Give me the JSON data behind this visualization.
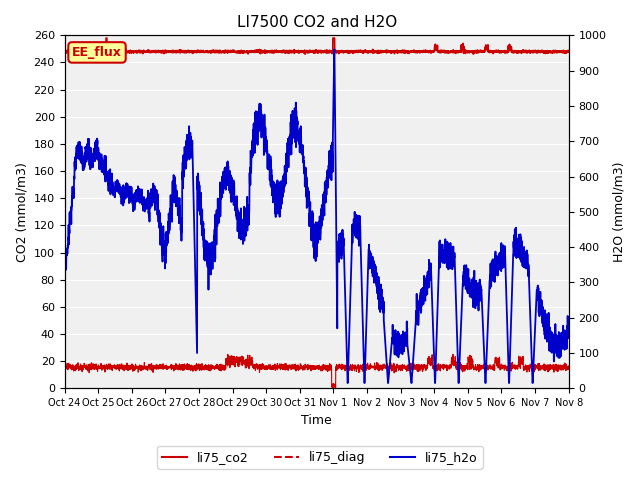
{
  "title": "LI7500 CO2 and H2O",
  "xlabel": "Time",
  "ylabel_left": "CO2 (mmol/m3)",
  "ylabel_right": "H2O (mmol/m3)",
  "ylim_left": [
    0,
    260
  ],
  "ylim_right": [
    0,
    1000
  ],
  "yticks_left": [
    0,
    20,
    40,
    60,
    80,
    100,
    120,
    140,
    160,
    180,
    200,
    220,
    240,
    260
  ],
  "yticks_right": [
    0,
    100,
    200,
    300,
    400,
    500,
    600,
    700,
    800,
    900,
    1000
  ],
  "xtick_labels": [
    "Oct 24",
    "Oct 25",
    "Oct 26",
    "Oct 27",
    "Oct 28",
    "Oct 29",
    "Oct 30",
    "Oct 31",
    "Nov 1",
    "Nov 2",
    "Nov 3",
    "Nov 4",
    "Nov 5",
    "Nov 6",
    "Nov 7",
    "Nov 8"
  ],
  "co2_color": "#cc0000",
  "diag_color": "#cc0000",
  "h2o_color": "#0000cc",
  "plot_bg_color": "#f0f0f0",
  "annotation_text": "EE_flux",
  "annotation_color": "#cc0000",
  "annotation_bg": "#ffff99",
  "legend_labels": [
    "li75_co2",
    "li75_diag",
    "li75_h2o"
  ],
  "n_points": 3360
}
